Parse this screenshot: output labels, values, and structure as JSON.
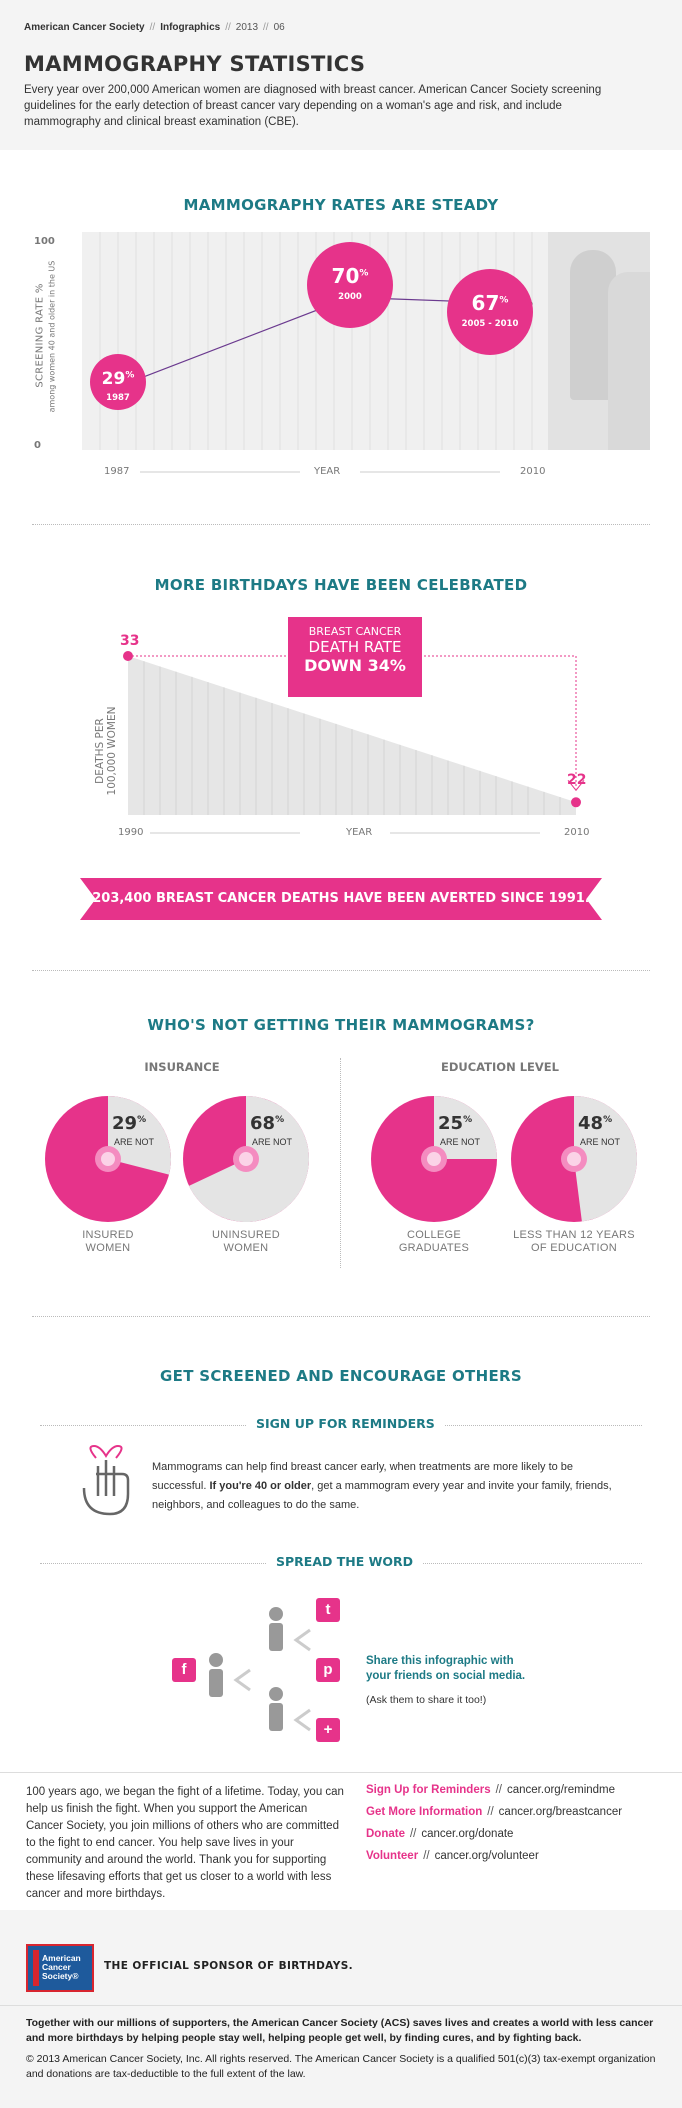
{
  "header": {
    "crumb_org": "American Cancer Society",
    "crumb_section": "Infographics",
    "crumb_year": "2013",
    "crumb_num": "06",
    "separator": "//",
    "title": "MAMMOGRAPHY STATISTICS",
    "intro": "Every year over 200,000 American women are diagnosed with breast cancer. American Cancer Society screening guidelines for the early detection of breast cancer vary depending on a woman's age and risk, and include mammography and clinical breast examination (CBE)."
  },
  "section1": {
    "title": "MAMMOGRAPHY RATES ARE STEADY",
    "ylabel": "SCREENING RATE %",
    "ylabel_sub": "among women 40 and older in the US",
    "y_top": "100",
    "y_bottom": "0",
    "x_start": "1987",
    "x_mid": "YEAR",
    "x_end": "2010",
    "bubbles": [
      {
        "value": "29",
        "pct_sign": "%",
        "year": "1987"
      },
      {
        "value": "70",
        "pct_sign": "%",
        "year": "2000"
      },
      {
        "value": "67",
        "pct_sign": "%",
        "year": "2005 - 2010"
      }
    ]
  },
  "section2": {
    "title": "MORE BIRTHDAYS HAVE BEEN CELEBRATED",
    "ylabel1": "DEATHS PER",
    "ylabel2": "100,000 WOMEN",
    "start_value": "33",
    "end_value": "22",
    "x_start": "1990",
    "x_mid": "YEAR",
    "x_end": "2010",
    "box_line1": "BREAST CANCER",
    "box_line2": "DEATH RATE",
    "box_line3": "DOWN 34%",
    "banner": "203,400 BREAST CANCER DEATHS HAVE BEEN AVERTED SINCE 1991."
  },
  "section3": {
    "title": "WHO'S NOT GETTING THEIR MAMMOGRAMS?",
    "group1": "INSURANCE",
    "group2": "EDUCATION LEVEL",
    "not_label": "ARE NOT",
    "pies": [
      {
        "value": "29",
        "sign": "%",
        "label1": "INSURED",
        "label2": "WOMEN"
      },
      {
        "value": "68",
        "sign": "%",
        "label1": "UNINSURED",
        "label2": "WOMEN"
      },
      {
        "value": "25",
        "sign": "%",
        "label1": "COLLEGE",
        "label2": "GRADUATES"
      },
      {
        "value": "48",
        "sign": "%",
        "label1": "LESS THAN 12 YEARS",
        "label2": "OF EDUCATION"
      }
    ]
  },
  "chart_data": [
    {
      "type": "line",
      "title": "MAMMOGRAPHY RATES ARE STEADY",
      "xlabel": "YEAR",
      "ylabel": "SCREENING RATE %",
      "x": [
        "1987",
        "2000",
        "2005 - 2010"
      ],
      "values": [
        29,
        70,
        67
      ],
      "ylim": [
        0,
        100
      ]
    },
    {
      "type": "area",
      "title": "MORE BIRTHDAYS HAVE BEEN CELEBRATED",
      "xlabel": "YEAR",
      "ylabel": "DEATHS PER 100,000 WOMEN",
      "x": [
        "1990",
        "2010"
      ],
      "values": [
        33,
        22
      ]
    },
    {
      "type": "pie",
      "title": "WHO'S NOT GETTING THEIR MAMMOGRAMS?",
      "categories": [
        "INSURED WOMEN",
        "UNINSURED WOMEN",
        "COLLEGE GRADUATES",
        "LESS THAN 12 YEARS OF EDUCATION"
      ],
      "values": [
        29,
        68,
        25,
        48
      ]
    }
  ],
  "section4": {
    "title": "GET SCREENED AND ENCOURAGE OTHERS",
    "reminders_title": "SIGN UP FOR REMINDERS",
    "reminders_text_a": "Mammograms can help find breast cancer early, when treatments are more likely to be successful.",
    "reminders_bold": "If you're 40 or older",
    "reminders_text_b": ", get a mammogram every year and invite your family, friends, neighbors, and colleagues to do the same.",
    "spread_title": "SPREAD THE WORD",
    "share_line1": "Share this infographic with",
    "share_line2": "your friends on social media.",
    "share_sub": "(Ask them to share it too!)",
    "icons": {
      "twitter": "t",
      "facebook": "f",
      "pinterest": "p",
      "plus": "+"
    }
  },
  "bottom": {
    "text": "100 years ago, we began the fight of a lifetime. Today, you can help us finish the fight. When you support the American Cancer Society, you join millions of others who are committed to the fight to end cancer. You help save lives in your community and around the world. Thank you for supporting these lifesaving efforts that get us closer to a world with less cancer and more birthdays.",
    "links": [
      {
        "label": "Sign Up for Reminders",
        "url": "cancer.org/remindme"
      },
      {
        "label": "Get More Information",
        "url": "cancer.org/breastcancer"
      },
      {
        "label": "Donate",
        "url": "cancer.org/donate"
      },
      {
        "label": "Volunteer",
        "url": "cancer.org/volunteer"
      }
    ],
    "link_sep": "//"
  },
  "footer": {
    "logo_line1": "American",
    "logo_line2": "Cancer",
    "logo_line3": "Society®",
    "sponsor": "THE OFFICIAL SPONSOR OF BIRTHDAYS.",
    "text1": "Together with our millions of supporters, the American Cancer Society (ACS) saves lives and creates a world with less cancer and more birthdays by helping people stay well, helping people get well, by finding cures, and by fighting back.",
    "text2": "© 2013 American Cancer Society, Inc. All rights reserved. The American Cancer Society is a qualified 501(c)(3) tax-exempt organization and donations are tax-deductible to the full extent of the law."
  },
  "colors": {
    "accent": "#e6338a",
    "teal": "#1d7a85",
    "gray": "#e6e6e6"
  }
}
